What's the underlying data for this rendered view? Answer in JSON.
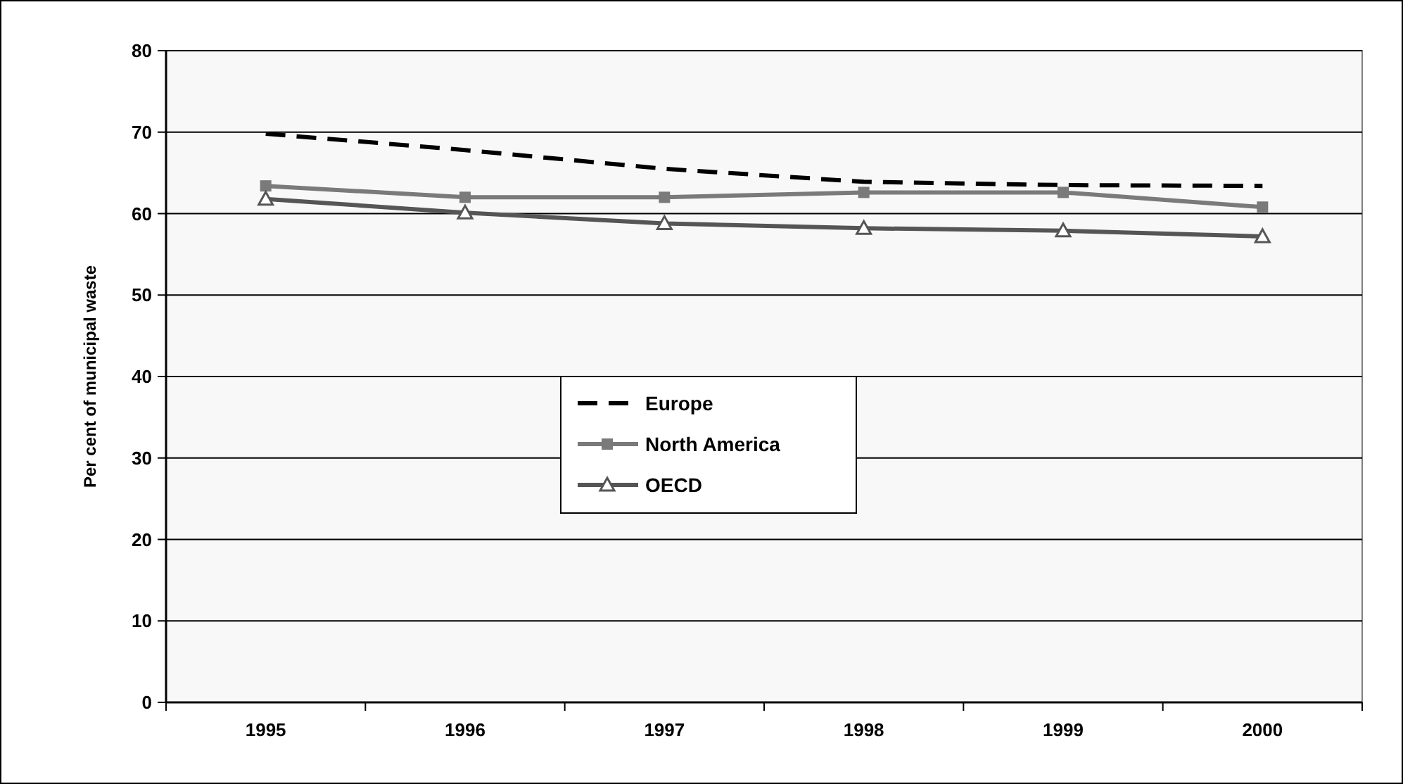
{
  "chart_data": {
    "type": "line",
    "ylabel": "Per cent of municipal waste",
    "categories": [
      "1995",
      "1996",
      "1997",
      "1998",
      "1999",
      "2000"
    ],
    "ylim": [
      0,
      80
    ],
    "yticks": [
      0,
      10,
      20,
      30,
      40,
      50,
      60,
      70,
      80
    ],
    "grid": "y",
    "legend": "center",
    "series": [
      {
        "name": "Europe",
        "color": "#000000",
        "line_style": "dashed",
        "marker": "none",
        "values": [
          69.8,
          67.8,
          65.5,
          63.9,
          63.5,
          63.4
        ]
      },
      {
        "name": "North America",
        "color": "#7a7a7a",
        "line_style": "solid",
        "marker": "square",
        "values": [
          63.4,
          62.0,
          62.0,
          62.6,
          62.6,
          60.8
        ]
      },
      {
        "name": "OECD",
        "color": "#555555",
        "line_style": "solid",
        "marker": "triangle",
        "values": [
          61.8,
          60.1,
          58.8,
          58.2,
          57.9,
          57.2
        ]
      }
    ]
  }
}
